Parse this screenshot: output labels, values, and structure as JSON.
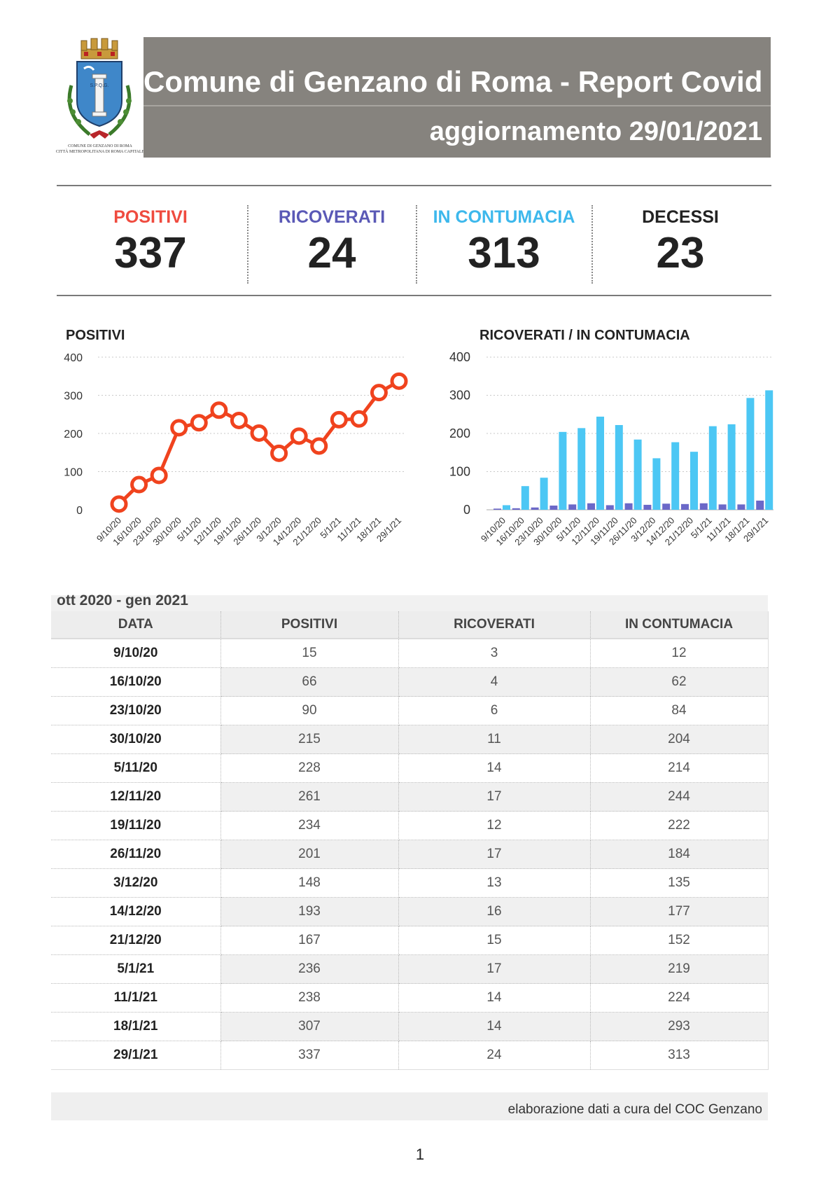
{
  "header": {
    "title": "Comune di Genzano di Roma - Report Covid",
    "update": "aggiornamento 29/01/2021",
    "crest_caption_1": "COMUNE DI GENZANO DI ROMA",
    "crest_caption_2": "CITTÀ METROPOLITANA DI ROMA CAPITALE",
    "crest_motto": "S.P.Q.G."
  },
  "kpis": [
    {
      "label": "POSITIVI",
      "value": "337",
      "color": "#ef4b3f"
    },
    {
      "label": "RICOVERATI",
      "value": "24",
      "color": "#5a59b6"
    },
    {
      "label": "IN CONTUMACIA",
      "value": "313",
      "color": "#3db8ec"
    },
    {
      "label": "DECESSI",
      "value": "23",
      "color": "#222222"
    }
  ],
  "chart_data": [
    {
      "type": "line",
      "title": "POSITIVI",
      "categories": [
        "9/10/20",
        "16/10/20",
        "23/10/20",
        "30/10/20",
        "5/11/20",
        "12/11/20",
        "19/11/20",
        "26/11/20",
        "3/12/20",
        "14/12/20",
        "21/12/20",
        "5/1/21",
        "11/1/21",
        "18/1/21",
        "29/1/21"
      ],
      "values": [
        15,
        66,
        90,
        215,
        228,
        261,
        234,
        201,
        148,
        193,
        167,
        236,
        238,
        307,
        337
      ],
      "yticks": [
        "0",
        "100",
        "200",
        "300",
        "400"
      ],
      "ylim": [
        0,
        400
      ],
      "color": "#f0431e"
    },
    {
      "type": "bar",
      "title": "RICOVERATI / IN CONTUMACIA",
      "categories": [
        "9/10/20",
        "16/10/20",
        "23/10/20",
        "30/10/20",
        "5/11/20",
        "12/11/20",
        "19/11/20",
        "26/11/20",
        "3/12/20",
        "14/12/20",
        "21/12/20",
        "5/1/21",
        "11/1/21",
        "18/1/21",
        "29/1/21"
      ],
      "series": [
        {
          "name": "RICOVERATI",
          "values": [
            3,
            4,
            6,
            11,
            14,
            17,
            12,
            17,
            13,
            16,
            15,
            17,
            14,
            14,
            24
          ],
          "color": "#6b68c8"
        },
        {
          "name": "IN CONTUMACIA",
          "values": [
            12,
            62,
            84,
            204,
            214,
            244,
            222,
            184,
            135,
            177,
            152,
            219,
            224,
            293,
            313
          ],
          "color": "#4cc7f4"
        }
      ],
      "yticks": [
        "0",
        "100",
        "200",
        "300",
        "400"
      ],
      "ylim": [
        0,
        400
      ]
    }
  ],
  "table": {
    "caption": "ott 2020 - gen 2021",
    "headers": [
      "DATA",
      "POSITIVI",
      "RICOVERATI",
      "IN CONTUMACIA"
    ],
    "rows": [
      [
        "9/10/20",
        "15",
        "3",
        "12"
      ],
      [
        "16/10/20",
        "66",
        "4",
        "62"
      ],
      [
        "23/10/20",
        "90",
        "6",
        "84"
      ],
      [
        "30/10/20",
        "215",
        "11",
        "204"
      ],
      [
        "5/11/20",
        "228",
        "14",
        "214"
      ],
      [
        "12/11/20",
        "261",
        "17",
        "244"
      ],
      [
        "19/11/20",
        "234",
        "12",
        "222"
      ],
      [
        "26/11/20",
        "201",
        "17",
        "184"
      ],
      [
        "3/12/20",
        "148",
        "13",
        "135"
      ],
      [
        "14/12/20",
        "193",
        "16",
        "177"
      ],
      [
        "21/12/20",
        "167",
        "15",
        "152"
      ],
      [
        "5/1/21",
        "236",
        "17",
        "219"
      ],
      [
        "11/1/21",
        "238",
        "14",
        "224"
      ],
      [
        "18/1/21",
        "307",
        "14",
        "293"
      ],
      [
        "29/1/21",
        "337",
        "24",
        "313"
      ]
    ]
  },
  "footer": {
    "credit": "elaborazione dati a cura del COC Genzano",
    "page": "1"
  }
}
